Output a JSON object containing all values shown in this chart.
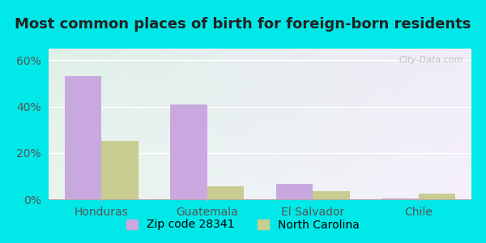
{
  "title": "Most common places of birth for foreign-born residents",
  "categories": [
    "Honduras",
    "Guatemala",
    "El Salvador",
    "Chile"
  ],
  "zip_values": [
    53,
    41,
    6.5,
    0.5
  ],
  "nc_values": [
    25,
    5.5,
    3.5,
    2.5
  ],
  "zip_color": "#c9a8e0",
  "nc_color": "#c8cc90",
  "bar_width": 0.35,
  "ylim": [
    0,
    65
  ],
  "yticks": [
    0,
    20,
    40,
    60
  ],
  "ytick_labels": [
    "0%",
    "20%",
    "40%",
    "60%"
  ],
  "legend_zip": "Zip code 28341",
  "legend_nc": "North Carolina",
  "bg_color": "#00e8e8",
  "plot_bg_topleft": "#dff0e8",
  "plot_bg_topright": "#f0ecf8",
  "plot_bg_bottomleft": "#e8f5ee",
  "plot_bg_bottomright": "#f5f0fc",
  "watermark": "City-Data.com",
  "title_fontsize": 13,
  "axis_label_fontsize": 10,
  "legend_fontsize": 10,
  "title_color": "#222222"
}
